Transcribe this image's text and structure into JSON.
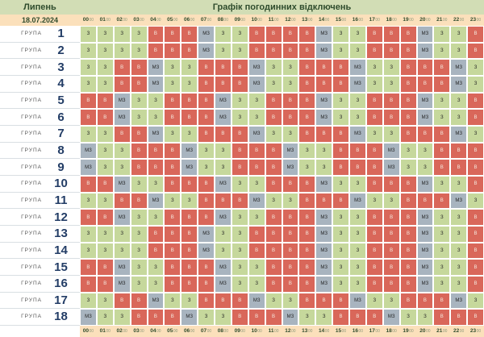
{
  "header": {
    "month": "Липень",
    "title": "Графік погодинних відключень",
    "date": "18.07.2024"
  },
  "hour_suffix": "00",
  "hours": [
    "00",
    "01",
    "02",
    "03",
    "04",
    "05",
    "06",
    "07",
    "08",
    "09",
    "10",
    "11",
    "12",
    "13",
    "14",
    "15",
    "16",
    "17",
    "18",
    "19",
    "20",
    "21",
    "22",
    "23"
  ],
  "group_label": "ГРУПА",
  "status_colors": {
    "З": "#c6d89c",
    "В": "#d9675a",
    "МЗ": "#a8b4bf"
  },
  "groups": [
    {
      "number": "1",
      "cells": [
        "З",
        "З",
        "З",
        "З",
        "В",
        "В",
        "В",
        "МЗ",
        "З",
        "З",
        "В",
        "В",
        "В",
        "В",
        "МЗ",
        "З",
        "З",
        "В",
        "В",
        "В",
        "МЗ",
        "З",
        "З",
        "В"
      ]
    },
    {
      "number": "2",
      "cells": [
        "З",
        "З",
        "З",
        "З",
        "В",
        "В",
        "В",
        "МЗ",
        "З",
        "З",
        "В",
        "В",
        "В",
        "В",
        "МЗ",
        "З",
        "З",
        "В",
        "В",
        "В",
        "МЗ",
        "З",
        "З",
        "В"
      ]
    },
    {
      "number": "3",
      "cells": [
        "З",
        "З",
        "В",
        "В",
        "МЗ",
        "З",
        "З",
        "В",
        "В",
        "В",
        "МЗ",
        "З",
        "З",
        "В",
        "В",
        "В",
        "МЗ",
        "З",
        "З",
        "В",
        "В",
        "В",
        "МЗ",
        "З"
      ]
    },
    {
      "number": "4",
      "cells": [
        "З",
        "З",
        "В",
        "В",
        "МЗ",
        "З",
        "З",
        "В",
        "В",
        "В",
        "МЗ",
        "З",
        "З",
        "В",
        "В",
        "В",
        "МЗ",
        "З",
        "З",
        "В",
        "В",
        "В",
        "МЗ",
        "З"
      ]
    },
    {
      "number": "5",
      "cells": [
        "В",
        "В",
        "МЗ",
        "З",
        "З",
        "В",
        "В",
        "В",
        "МЗ",
        "З",
        "З",
        "В",
        "В",
        "В",
        "МЗ",
        "З",
        "З",
        "В",
        "В",
        "В",
        "МЗ",
        "З",
        "З",
        "В"
      ]
    },
    {
      "number": "6",
      "cells": [
        "В",
        "В",
        "МЗ",
        "З",
        "З",
        "В",
        "В",
        "В",
        "МЗ",
        "З",
        "З",
        "В",
        "В",
        "В",
        "МЗ",
        "З",
        "З",
        "В",
        "В",
        "В",
        "МЗ",
        "З",
        "З",
        "В"
      ]
    },
    {
      "number": "7",
      "cells": [
        "З",
        "З",
        "В",
        "В",
        "МЗ",
        "З",
        "З",
        "В",
        "В",
        "В",
        "МЗ",
        "З",
        "З",
        "В",
        "В",
        "В",
        "МЗ",
        "З",
        "З",
        "В",
        "В",
        "В",
        "МЗ",
        "З"
      ]
    },
    {
      "number": "8",
      "cells": [
        "МЗ",
        "З",
        "З",
        "В",
        "В",
        "В",
        "МЗ",
        "З",
        "З",
        "В",
        "В",
        "В",
        "МЗ",
        "З",
        "З",
        "В",
        "В",
        "В",
        "МЗ",
        "З",
        "З",
        "В",
        "В",
        "В"
      ]
    },
    {
      "number": "9",
      "cells": [
        "МЗ",
        "З",
        "З",
        "В",
        "В",
        "В",
        "МЗ",
        "З",
        "З",
        "В",
        "В",
        "В",
        "МЗ",
        "З",
        "З",
        "В",
        "В",
        "В",
        "МЗ",
        "З",
        "З",
        "В",
        "В",
        "В"
      ]
    },
    {
      "number": "10",
      "cells": [
        "В",
        "В",
        "МЗ",
        "З",
        "З",
        "В",
        "В",
        "В",
        "МЗ",
        "З",
        "З",
        "В",
        "В",
        "В",
        "МЗ",
        "З",
        "З",
        "В",
        "В",
        "В",
        "МЗ",
        "З",
        "З",
        "В"
      ]
    },
    {
      "number": "11",
      "cells": [
        "З",
        "З",
        "В",
        "В",
        "МЗ",
        "З",
        "З",
        "В",
        "В",
        "В",
        "МЗ",
        "З",
        "З",
        "В",
        "В",
        "В",
        "МЗ",
        "З",
        "З",
        "В",
        "В",
        "В",
        "МЗ",
        "З"
      ]
    },
    {
      "number": "12",
      "cells": [
        "В",
        "В",
        "МЗ",
        "З",
        "З",
        "В",
        "В",
        "В",
        "МЗ",
        "З",
        "З",
        "В",
        "В",
        "В",
        "МЗ",
        "З",
        "З",
        "В",
        "В",
        "В",
        "МЗ",
        "З",
        "З",
        "В"
      ]
    },
    {
      "number": "13",
      "cells": [
        "З",
        "З",
        "З",
        "З",
        "В",
        "В",
        "В",
        "МЗ",
        "З",
        "З",
        "В",
        "В",
        "В",
        "В",
        "МЗ",
        "З",
        "З",
        "В",
        "В",
        "В",
        "МЗ",
        "З",
        "З",
        "В"
      ]
    },
    {
      "number": "14",
      "cells": [
        "З",
        "З",
        "З",
        "З",
        "В",
        "В",
        "В",
        "МЗ",
        "З",
        "З",
        "В",
        "В",
        "В",
        "В",
        "МЗ",
        "З",
        "З",
        "В",
        "В",
        "В",
        "МЗ",
        "З",
        "З",
        "В"
      ]
    },
    {
      "number": "15",
      "cells": [
        "В",
        "В",
        "МЗ",
        "З",
        "З",
        "В",
        "В",
        "В",
        "МЗ",
        "З",
        "З",
        "В",
        "В",
        "В",
        "МЗ",
        "З",
        "З",
        "В",
        "В",
        "В",
        "МЗ",
        "З",
        "З",
        "В"
      ]
    },
    {
      "number": "16",
      "cells": [
        "В",
        "В",
        "МЗ",
        "З",
        "З",
        "В",
        "В",
        "В",
        "МЗ",
        "З",
        "З",
        "В",
        "В",
        "В",
        "МЗ",
        "З",
        "З",
        "В",
        "В",
        "В",
        "МЗ",
        "З",
        "З",
        "В"
      ]
    },
    {
      "number": "17",
      "cells": [
        "З",
        "З",
        "В",
        "В",
        "МЗ",
        "З",
        "З",
        "В",
        "В",
        "В",
        "МЗ",
        "З",
        "З",
        "В",
        "В",
        "В",
        "МЗ",
        "З",
        "З",
        "В",
        "В",
        "В",
        "МЗ",
        "З"
      ]
    },
    {
      "number": "18",
      "cells": [
        "МЗ",
        "З",
        "З",
        "В",
        "В",
        "В",
        "МЗ",
        "З",
        "З",
        "В",
        "В",
        "В",
        "МЗ",
        "З",
        "З",
        "В",
        "В",
        "В",
        "МЗ",
        "З",
        "З",
        "В",
        "В",
        "В"
      ]
    }
  ]
}
